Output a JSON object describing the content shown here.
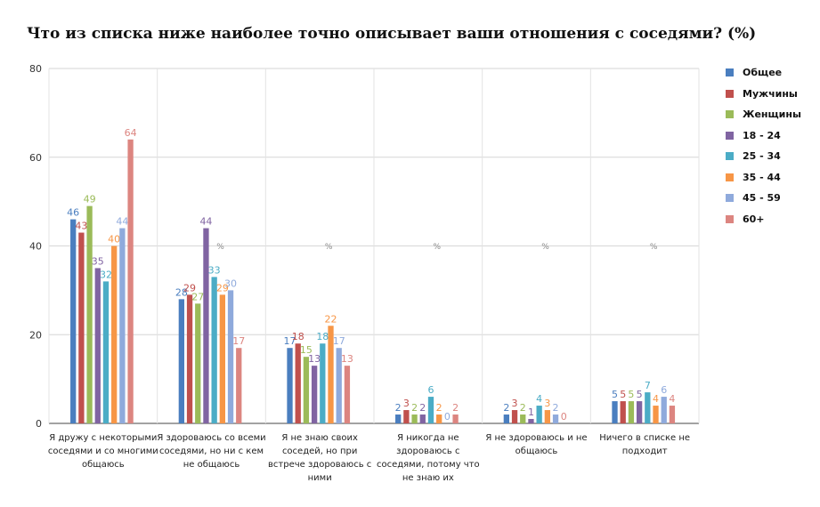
{
  "chart_data": {
    "type": "bar",
    "title": "Что из списка ниже наиболее точно описывает ваши отношения с соседями? (%)",
    "xlabel": "",
    "ylabel": "",
    "ylim": [
      0,
      80
    ],
    "yticks": [
      0,
      20,
      40,
      60,
      80
    ],
    "grid": true,
    "legend_position": "right",
    "categories": [
      "Я дружу с некоторыми соседями и со многими общаюсь",
      "Я здороваюсь со всеми соседями, но ни с кем не общаюсь",
      "Я не знаю своих соседей, но при встрече здороваюсь с ними",
      "Я никогда не здороваюсь с соседями, потому что не знаю их",
      "Я не здороваюсь и не общаюсь",
      "Ничего в списке не подходит"
    ],
    "series": [
      {
        "name": "Общее",
        "color": "#4a7ebf",
        "values": [
          46,
          28,
          17,
          2,
          2,
          5
        ]
      },
      {
        "name": "Мужчины",
        "color": "#c0504d",
        "values": [
          43,
          29,
          18,
          3,
          3,
          5
        ]
      },
      {
        "name": "Женщины",
        "color": "#9bbb59",
        "values": [
          49,
          27,
          15,
          2,
          2,
          5
        ]
      },
      {
        "name": "18 - 24",
        "color": "#8064a2",
        "values": [
          35,
          44,
          13,
          2,
          1,
          5
        ]
      },
      {
        "name": "25 - 34",
        "color": "#4bacc6",
        "values": [
          32,
          33,
          18,
          6,
          4,
          7
        ]
      },
      {
        "name": "35 - 44",
        "color": "#f79646",
        "values": [
          40,
          29,
          22,
          2,
          3,
          4
        ]
      },
      {
        "name": "45 - 59",
        "color": "#8faadc",
        "values": [
          44,
          30,
          17,
          0,
          2,
          6
        ]
      },
      {
        "name": "60+",
        "color": "#dc8580",
        "values": [
          64,
          17,
          13,
          2,
          0,
          4
        ]
      }
    ],
    "annotations": [
      "%",
      "%",
      "%",
      "%",
      "%"
    ]
  }
}
